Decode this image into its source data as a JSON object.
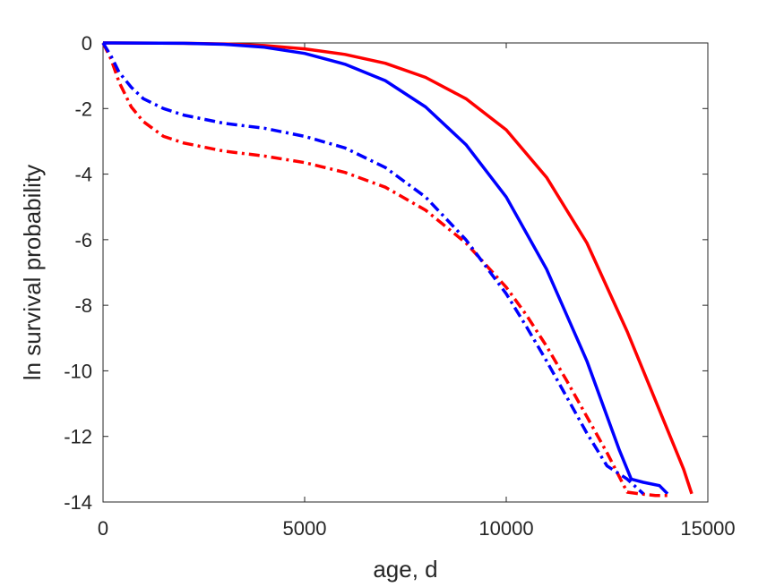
{
  "chart_data": {
    "type": "line",
    "title": "",
    "xlabel": "age, d",
    "ylabel": "ln survival probability",
    "xlim": [
      0,
      15000
    ],
    "ylim": [
      -14,
      0
    ],
    "xticks": [
      0,
      5000,
      10000,
      15000
    ],
    "xtick_labels": [
      "0",
      "5000",
      "10000",
      "15000"
    ],
    "yticks": [
      0,
      -2,
      -4,
      -6,
      -8,
      -10,
      -12,
      -14
    ],
    "ytick_labels": [
      "0",
      "-2",
      "-4",
      "-6",
      "-8",
      "-10",
      "-12",
      "-14"
    ],
    "grid": false,
    "legend": "none",
    "series": [
      {
        "color": "#ff0000",
        "style": "solid",
        "x": [
          0,
          2000,
          3000,
          4000,
          5000,
          6000,
          7000,
          8000,
          9000,
          10000,
          11000,
          12000,
          13000,
          13500,
          14000,
          14400,
          14600
        ],
        "y": [
          0,
          -0.01,
          -0.03,
          -0.08,
          -0.18,
          -0.35,
          -0.62,
          -1.05,
          -1.7,
          -2.65,
          -4.1,
          -6.1,
          -8.8,
          -10.3,
          -11.8,
          -13.0,
          -13.75
        ]
      },
      {
        "color": "#0000ff",
        "style": "solid",
        "x": [
          0,
          2000,
          3000,
          4000,
          5000,
          6000,
          7000,
          8000,
          9000,
          10000,
          11000,
          12000,
          12800,
          13100,
          13400,
          13800,
          14000
        ],
        "y": [
          0,
          -0.01,
          -0.04,
          -0.13,
          -0.32,
          -0.65,
          -1.15,
          -1.95,
          -3.1,
          -4.7,
          -6.9,
          -9.7,
          -12.4,
          -13.3,
          -13.4,
          -13.5,
          -13.75
        ]
      },
      {
        "color": "#ff0000",
        "style": "dashdot",
        "x": [
          0,
          200,
          400,
          700,
          1000,
          1500,
          2000,
          3000,
          4000,
          5000,
          6000,
          7000,
          8000,
          9000,
          10000,
          10500,
          11000,
          11500,
          12000,
          12500,
          13000,
          13300,
          13700,
          14000
        ],
        "y": [
          0,
          -0.5,
          -1.2,
          -1.95,
          -2.4,
          -2.85,
          -3.05,
          -3.3,
          -3.45,
          -3.65,
          -3.95,
          -4.4,
          -5.1,
          -6.1,
          -7.45,
          -8.3,
          -9.25,
          -10.3,
          -11.4,
          -12.5,
          -13.7,
          -13.75,
          -13.8,
          -13.8
        ]
      },
      {
        "color": "#0000ff",
        "style": "dashdot",
        "x": [
          0,
          200,
          400,
          700,
          1000,
          1500,
          2000,
          3000,
          4000,
          5000,
          6000,
          7000,
          8000,
          9000,
          10000,
          10500,
          11000,
          11500,
          12000,
          12500,
          13000,
          13400
        ],
        "y": [
          0,
          -0.4,
          -0.9,
          -1.35,
          -1.7,
          -2.0,
          -2.2,
          -2.45,
          -2.6,
          -2.85,
          -3.2,
          -3.8,
          -4.7,
          -6.0,
          -7.65,
          -8.65,
          -9.7,
          -10.8,
          -11.9,
          -12.9,
          -13.3,
          -13.75
        ]
      }
    ]
  }
}
